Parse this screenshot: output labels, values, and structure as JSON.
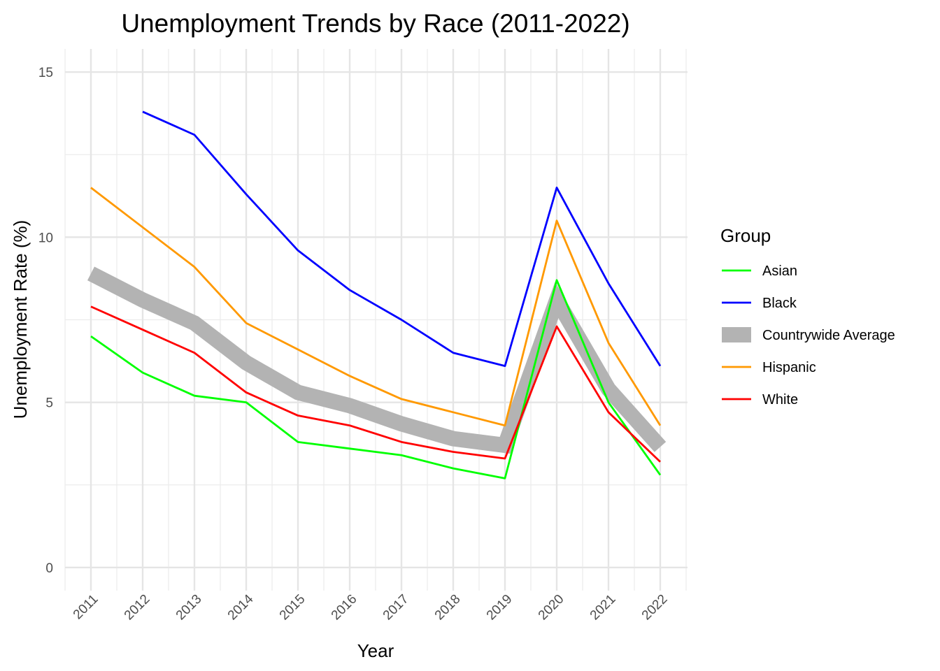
{
  "chart_data": {
    "type": "line",
    "title": "Unemployment Trends by Race (2011-2022)",
    "xlabel": "Year",
    "ylabel": "Unemployment Rate (%)",
    "x": [
      2011,
      2012,
      2013,
      2014,
      2015,
      2016,
      2017,
      2018,
      2019,
      2020,
      2021,
      2022
    ],
    "ylim": [
      -0.7,
      15.7
    ],
    "y_ticks": [
      0,
      5,
      10,
      15
    ],
    "grid": true,
    "legend": {
      "title": "Group",
      "placement": "right"
    },
    "series": [
      {
        "name": "Countrywide Average",
        "color": "#b3b3b3",
        "emphasis": "thick",
        "values": [
          8.9,
          8.1,
          7.4,
          6.2,
          5.3,
          4.9,
          4.35,
          3.9,
          3.7,
          8.1,
          5.4,
          3.65
        ]
      },
      {
        "name": "Asian",
        "color": "#00ff00",
        "values": [
          7.0,
          5.9,
          5.2,
          5.0,
          3.8,
          3.6,
          3.4,
          3.0,
          2.7,
          8.7,
          5.0,
          2.8
        ]
      },
      {
        "name": "Black",
        "color": "#0000ff",
        "values": [
          null,
          13.8,
          13.1,
          11.3,
          9.6,
          8.4,
          7.5,
          6.5,
          6.1,
          11.5,
          8.6,
          6.1
        ]
      },
      {
        "name": "Hispanic",
        "color": "#ff9900",
        "values": [
          11.5,
          10.3,
          9.1,
          7.4,
          6.6,
          5.8,
          5.1,
          4.7,
          4.3,
          10.5,
          6.8,
          4.3
        ]
      },
      {
        "name": "White",
        "color": "#ff0000",
        "values": [
          7.9,
          7.2,
          6.5,
          5.3,
          4.6,
          4.3,
          3.8,
          3.5,
          3.3,
          7.3,
          4.7,
          3.2
        ]
      }
    ],
    "legend_order": [
      "Asian",
      "Black",
      "Countrywide Average",
      "Hispanic",
      "White"
    ]
  }
}
